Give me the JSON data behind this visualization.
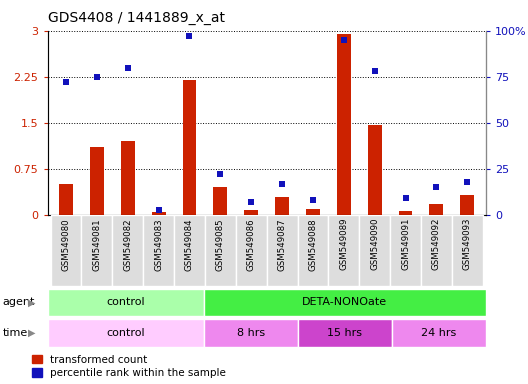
{
  "title": "GDS4408 / 1441889_x_at",
  "samples": [
    "GSM549080",
    "GSM549081",
    "GSM549082",
    "GSM549083",
    "GSM549084",
    "GSM549085",
    "GSM549086",
    "GSM549087",
    "GSM549088",
    "GSM549089",
    "GSM549090",
    "GSM549091",
    "GSM549092",
    "GSM549093"
  ],
  "transformed_count": [
    0.5,
    1.1,
    1.2,
    0.05,
    2.2,
    0.45,
    0.08,
    0.3,
    0.1,
    2.95,
    1.47,
    0.07,
    0.18,
    0.32
  ],
  "percentile_rank": [
    72,
    75,
    80,
    3,
    97,
    22,
    7,
    17,
    8,
    95,
    78,
    9,
    15,
    18
  ],
  "ylim_left": [
    0,
    3
  ],
  "ylim_right": [
    0,
    100
  ],
  "yticks_left": [
    0,
    0.75,
    1.5,
    2.25,
    3
  ],
  "yticks_right": [
    0,
    25,
    50,
    75,
    100
  ],
  "ytick_labels_left": [
    "0",
    "0.75",
    "1.5",
    "2.25",
    "3"
  ],
  "ytick_labels_right": [
    "0",
    "25",
    "50",
    "75",
    "100%"
  ],
  "bar_color_red": "#CC2200",
  "bar_color_blue": "#1111BB",
  "grid_color": "#000000",
  "agent_row": [
    {
      "label": "control",
      "start": 0,
      "end": 5,
      "color": "#AAFFAA"
    },
    {
      "label": "DETA-NONOate",
      "start": 5,
      "end": 14,
      "color": "#44EE44"
    }
  ],
  "time_row": [
    {
      "label": "control",
      "start": 0,
      "end": 5,
      "color": "#FFCCFF"
    },
    {
      "label": "8 hrs",
      "start": 5,
      "end": 8,
      "color": "#EE88EE"
    },
    {
      "label": "15 hrs",
      "start": 8,
      "end": 11,
      "color": "#CC44CC"
    },
    {
      "label": "24 hrs",
      "start": 11,
      "end": 14,
      "color": "#EE88EE"
    }
  ],
  "legend_red_label": "transformed count",
  "legend_blue_label": "percentile rank within the sample",
  "bar_width": 0.45,
  "bg_color": "#FFFFFF",
  "plot_bg_color": "#FFFFFF",
  "agent_label": "agent",
  "time_label": "time",
  "sample_bg_color": "#DDDDDD",
  "border_color": "#888888"
}
